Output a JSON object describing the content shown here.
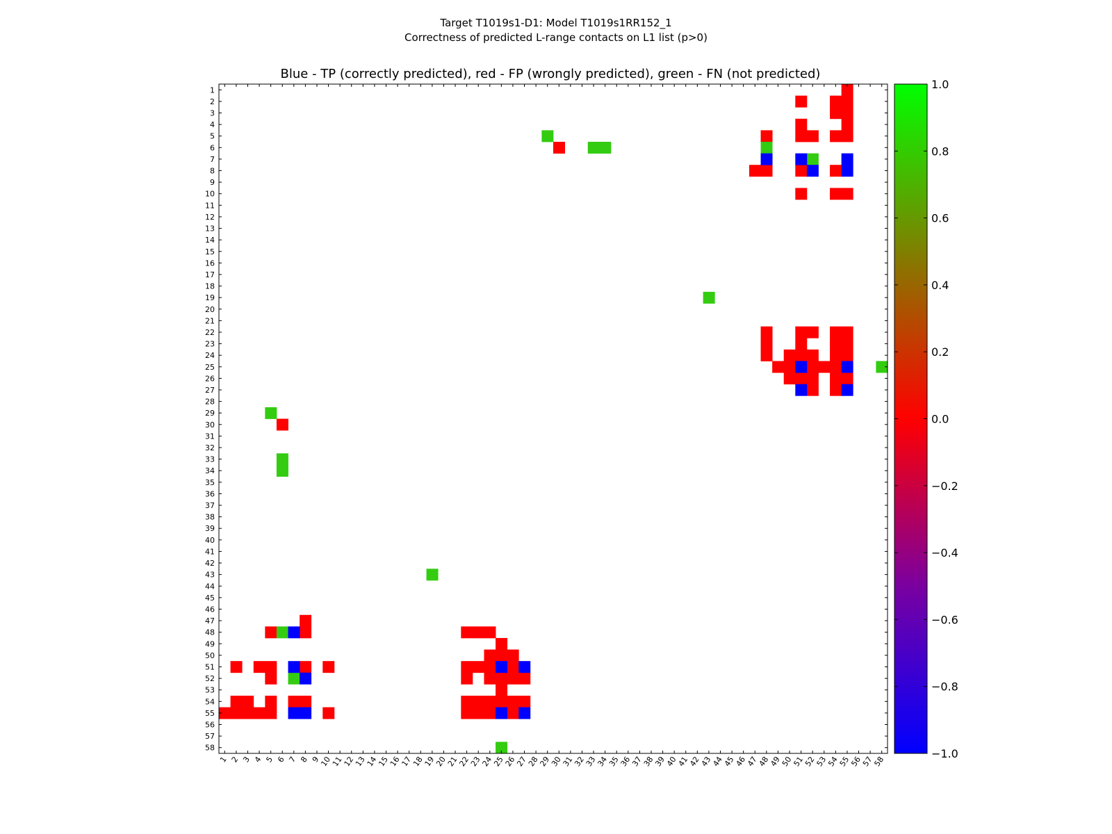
{
  "chart_data": {
    "type": "heatmap",
    "title_line1": "Target T1019s1-D1: Model T1019s1RR152_1",
    "title_line2": "Correctness of predicted L-range contacts on L1 list (p>0)",
    "subtitle": "Blue - TP (correctly predicted), red - FP (wrongly predicted), green - FN (not predicted)",
    "xlabel": "",
    "ylabel": "",
    "n": 58,
    "tick_labels": [
      "1",
      "2",
      "3",
      "4",
      "5",
      "6",
      "7",
      "8",
      "9",
      "10",
      "11",
      "12",
      "13",
      "14",
      "15",
      "16",
      "17",
      "18",
      "19",
      "20",
      "21",
      "22",
      "23",
      "24",
      "25",
      "26",
      "27",
      "28",
      "29",
      "30",
      "31",
      "32",
      "33",
      "34",
      "35",
      "36",
      "37",
      "38",
      "39",
      "40",
      "41",
      "42",
      "43",
      "44",
      "45",
      "46",
      "47",
      "48",
      "49",
      "50",
      "51",
      "52",
      "53",
      "54",
      "55",
      "56",
      "57",
      "58"
    ],
    "categories": {
      "tp": {
        "label": "TP (correctly predicted)",
        "value": -1.0,
        "color": "#0000ff"
      },
      "fp": {
        "label": "FP (wrongly predicted)",
        "value": 0.0,
        "color": "#ff0000"
      },
      "fn": {
        "label": "FN (not predicted)",
        "value": 0.8,
        "color": "#33cc11"
      }
    },
    "colorbar": {
      "vmin": -1.0,
      "vmax": 1.0,
      "tick_labels": [
        "1.0",
        "0.8",
        "0.6",
        "0.4",
        "0.2",
        "0.0",
        "−0.2",
        "−0.4",
        "−0.6",
        "−0.8",
        "−1.0"
      ],
      "gradient_stops": [
        "#0000ff",
        "#7a00a0",
        "#ff0000",
        "#00ff00"
      ]
    },
    "cells": {
      "tp": [
        [
          7,
          48
        ],
        [
          7,
          51
        ],
        [
          7,
          55
        ],
        [
          8,
          52
        ],
        [
          8,
          55
        ],
        [
          25,
          51
        ],
        [
          25,
          55
        ],
        [
          27,
          51
        ],
        [
          27,
          55
        ],
        [
          48,
          7
        ],
        [
          51,
          7
        ],
        [
          51,
          25
        ],
        [
          51,
          27
        ],
        [
          52,
          8
        ],
        [
          55,
          7
        ],
        [
          55,
          8
        ],
        [
          55,
          25
        ],
        [
          55,
          27
        ]
      ],
      "fn": [
        [
          5,
          29
        ],
        [
          6,
          33
        ],
        [
          6,
          34
        ],
        [
          6,
          48
        ],
        [
          7,
          52
        ],
        [
          19,
          43
        ],
        [
          25,
          58
        ],
        [
          29,
          5
        ],
        [
          33,
          6
        ],
        [
          34,
          6
        ],
        [
          43,
          19
        ],
        [
          48,
          6
        ],
        [
          52,
          7
        ],
        [
          58,
          25
        ]
      ],
      "fp": [
        [
          1,
          55
        ],
        [
          2,
          51
        ],
        [
          2,
          54
        ],
        [
          2,
          55
        ],
        [
          3,
          54
        ],
        [
          3,
          55
        ],
        [
          4,
          51
        ],
        [
          4,
          55
        ],
        [
          5,
          48
        ],
        [
          5,
          51
        ],
        [
          5,
          52
        ],
        [
          5,
          54
        ],
        [
          5,
          55
        ],
        [
          6,
          30
        ],
        [
          8,
          47
        ],
        [
          8,
          48
        ],
        [
          8,
          51
        ],
        [
          8,
          54
        ],
        [
          10,
          51
        ],
        [
          10,
          54
        ],
        [
          10,
          55
        ],
        [
          22,
          48
        ],
        [
          22,
          51
        ],
        [
          22,
          52
        ],
        [
          22,
          54
        ],
        [
          22,
          55
        ],
        [
          23,
          48
        ],
        [
          23,
          51
        ],
        [
          23,
          54
        ],
        [
          23,
          55
        ],
        [
          24,
          48
        ],
        [
          24,
          50
        ],
        [
          24,
          51
        ],
        [
          24,
          52
        ],
        [
          24,
          54
        ],
        [
          24,
          55
        ],
        [
          25,
          49
        ],
        [
          25,
          50
        ],
        [
          25,
          52
        ],
        [
          25,
          53
        ],
        [
          25,
          54
        ],
        [
          26,
          50
        ],
        [
          26,
          51
        ],
        [
          26,
          52
        ],
        [
          26,
          54
        ],
        [
          26,
          55
        ],
        [
          27,
          52
        ],
        [
          27,
          54
        ],
        [
          30,
          6
        ],
        [
          47,
          8
        ],
        [
          48,
          5
        ],
        [
          48,
          8
        ],
        [
          48,
          22
        ],
        [
          48,
          23
        ],
        [
          48,
          24
        ],
        [
          49,
          25
        ],
        [
          50,
          24
        ],
        [
          50,
          25
        ],
        [
          50,
          26
        ],
        [
          51,
          2
        ],
        [
          51,
          4
        ],
        [
          51,
          5
        ],
        [
          51,
          8
        ],
        [
          51,
          10
        ],
        [
          51,
          22
        ],
        [
          51,
          23
        ],
        [
          51,
          24
        ],
        [
          51,
          26
        ],
        [
          52,
          5
        ],
        [
          52,
          22
        ],
        [
          52,
          24
        ],
        [
          52,
          25
        ],
        [
          52,
          26
        ],
        [
          52,
          27
        ],
        [
          53,
          25
        ],
        [
          54,
          2
        ],
        [
          54,
          3
        ],
        [
          54,
          5
        ],
        [
          54,
          7
        ],
        [
          54,
          8
        ],
        [
          54,
          22
        ],
        [
          54,
          23
        ],
        [
          54,
          24
        ],
        [
          54,
          25
        ],
        [
          54,
          26
        ],
        [
          54,
          27
        ],
        [
          55,
          1
        ],
        [
          55,
          2
        ],
        [
          55,
          3
        ],
        [
          55,
          4
        ],
        [
          55,
          5
        ],
        [
          55,
          10
        ],
        [
          55,
          22
        ],
        [
          55,
          23
        ],
        [
          55,
          24
        ],
        [
          55,
          26
        ]
      ]
    }
  }
}
